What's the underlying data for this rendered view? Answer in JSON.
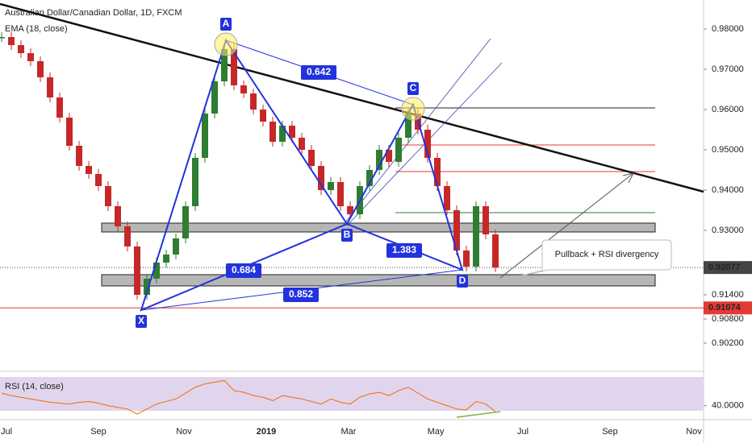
{
  "chart_data": {
    "type": "candlestick",
    "title": "Australian Dollar/Canadian Dollar, 1D, FXCM",
    "indicator": "EMA (18, close)",
    "up_color": "#2e7d32",
    "down_color": "#c62828",
    "values": [
      0.978,
      0.976,
      0.974,
      0.972,
      0.968,
      0.963,
      0.958,
      0.951,
      0.946,
      0.944,
      0.941,
      0.936,
      0.931,
      0.926,
      0.914,
      0.918,
      0.922,
      0.924,
      0.928,
      0.936,
      0.948,
      0.959,
      0.967,
      0.975,
      0.966,
      0.964,
      0.96,
      0.957,
      0.952,
      0.956,
      0.953,
      0.95,
      0.946,
      0.94,
      0.942,
      0.936,
      0.934,
      0.941,
      0.945,
      0.95,
      0.947,
      0.953,
      0.959,
      0.955,
      0.948,
      0.941,
      0.935,
      0.925,
      0.921,
      0.936,
      0.929,
      0.9208
    ],
    "ylim": [
      0.8952,
      0.9872
    ],
    "yticks": [
      {
        "value": 0.98,
        "label": "0.98000"
      },
      {
        "value": 0.97,
        "label": "0.97000"
      },
      {
        "value": 0.96,
        "label": "0.96000"
      },
      {
        "value": 0.95,
        "label": "0.95000"
      },
      {
        "value": 0.94,
        "label": "0.94000"
      },
      {
        "value": 0.93,
        "label": "0.93000"
      },
      {
        "value": 0.914,
        "label": "0.91400"
      },
      {
        "value": 0.908,
        "label": "0.90800"
      },
      {
        "value": 0.902,
        "label": "0.90200"
      }
    ],
    "price_tags": [
      {
        "value": 0.92077,
        "label": "0.92077",
        "color": "#444444"
      },
      {
        "value": 0.91074,
        "label": "0.91074",
        "color": "#e53935"
      }
    ],
    "x_labels": [
      "Jul",
      "Sep",
      "Nov",
      "2019",
      "Mar",
      "May",
      "Jul",
      "Sep",
      "Nov"
    ],
    "pattern": [
      {
        "label": "X",
        "price": 0.9102
      },
      {
        "label": "A",
        "price": 0.9772
      },
      {
        "label": "B",
        "price": 0.9316
      },
      {
        "label": "C",
        "price": 0.9612
      },
      {
        "label": "D",
        "price": 0.9202
      }
    ],
    "ratios": [
      "0.642",
      "1.383",
      "0.684",
      "0.852"
    ],
    "levels": [
      {
        "value": 0.9604,
        "color": "#222222"
      },
      {
        "value": 0.9512,
        "color": "#e53935"
      },
      {
        "value": 0.9446,
        "color": "#e53935"
      },
      {
        "value": 0.9344,
        "color": "#2e7d32"
      }
    ],
    "zones": [
      [
        0.9296,
        0.9318
      ],
      [
        0.9162,
        0.919
      ]
    ],
    "annotation": "Pullback + RSI divergency",
    "rsi": {
      "title": "RSI (14, close)",
      "ylim": [
        24.3,
        80
      ],
      "yticks": [
        {
          "value": 40,
          "label": "40.0000"
        }
      ],
      "values": [
        55,
        52,
        50,
        48,
        46,
        44,
        43,
        42,
        44,
        45,
        43,
        40,
        38,
        36,
        30,
        36,
        42,
        45,
        48,
        55,
        62,
        66,
        68,
        70,
        58,
        56,
        52,
        50,
        46,
        52,
        50,
        48,
        45,
        42,
        48,
        44,
        42,
        50,
        54,
        56,
        52,
        58,
        62,
        55,
        48,
        44,
        40,
        36,
        35,
        45,
        42,
        33
      ]
    }
  }
}
